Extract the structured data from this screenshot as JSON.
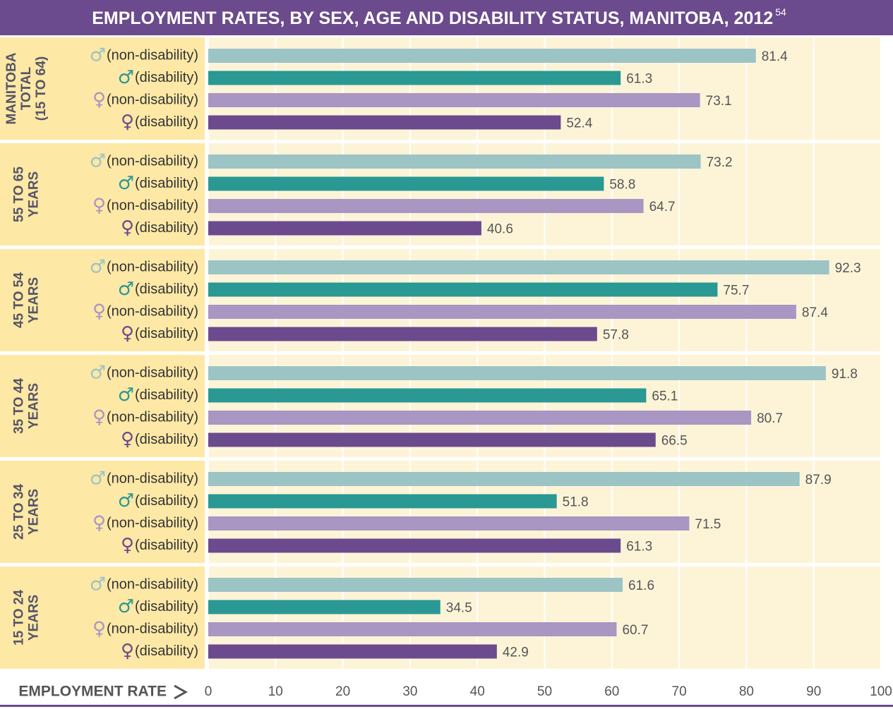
{
  "chart_data": {
    "type": "bar",
    "orientation": "horizontal",
    "title": "EMPLOYMENT RATES, BY SEX, AGE AND DISABILITY STATUS, MANITOBA, 2012",
    "title_note": "54",
    "x_label": "EMPLOYMENT RATE",
    "categories": [
      [
        "MANITOBA",
        "TOTAL",
        "(15 TO 64)"
      ],
      [
        "55 TO 65",
        "YEARS"
      ],
      [
        "45 TO 54",
        "YEARS"
      ],
      [
        "35 TO 44",
        "YEARS"
      ],
      [
        "25 TO 34",
        "YEARS"
      ],
      [
        "15 TO 24",
        "YEARS"
      ]
    ],
    "series": [
      {
        "name": "(non-disability)",
        "symbol": "♂",
        "color": "#9cc4c5",
        "values": [
          81.4,
          73.2,
          92.3,
          91.8,
          87.9,
          61.6
        ]
      },
      {
        "name": "(disability)",
        "symbol": "♂",
        "color": "#2a9893",
        "values": [
          61.3,
          58.8,
          75.7,
          65.1,
          51.8,
          34.5
        ]
      },
      {
        "name": "(non-disability)",
        "symbol": "♀",
        "color": "#a996c2",
        "values": [
          73.1,
          64.7,
          87.4,
          80.7,
          71.5,
          60.7
        ]
      },
      {
        "name": "(disability)",
        "symbol": "♀",
        "color": "#6b4a8d",
        "values": [
          52.4,
          40.6,
          57.8,
          66.5,
          61.3,
          42.9
        ]
      }
    ],
    "xlim": [
      0,
      100
    ],
    "xticks": [
      0,
      10,
      20,
      30,
      40,
      50,
      60,
      70,
      80,
      90,
      100
    ],
    "grid": true
  }
}
